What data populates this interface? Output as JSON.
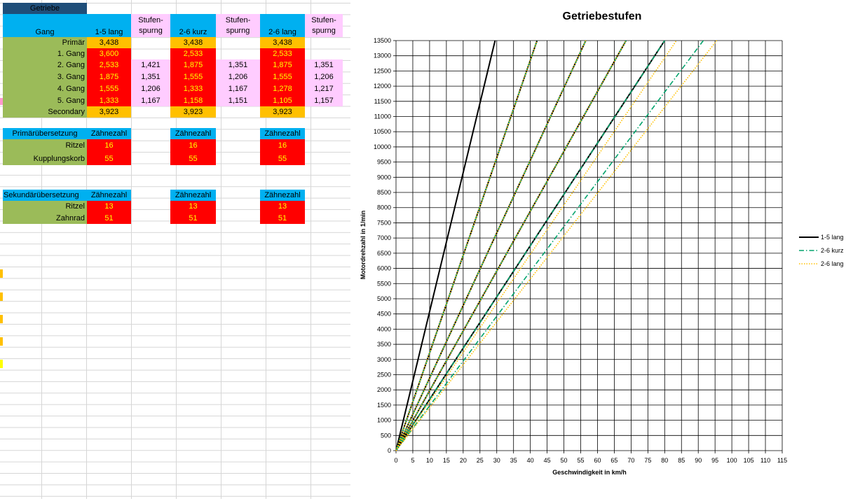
{
  "sheet": {
    "header_label": "Getriebe",
    "gear_table": {
      "col_gang": "Gang",
      "col_1": "1-5 lang",
      "col_2": "2-6 kurz",
      "col_3": "2-6 lang",
      "stufen_line1": "Stufen-",
      "stufen_line2": "spurng",
      "rows": [
        {
          "label": "Primär",
          "v1": "3,438",
          "s1": "",
          "v2": "3,438",
          "s2": "",
          "v3": "3,438",
          "s3": ""
        },
        {
          "label": "1. Gang",
          "v1": "3,600",
          "s1": "",
          "v2": "2,533",
          "s2": "",
          "v3": "2,533",
          "s3": ""
        },
        {
          "label": "2. Gang",
          "v1": "2,533",
          "s1": "1,421",
          "v2": "1,875",
          "s2": "1,351",
          "v3": "1,875",
          "s3": "1,351"
        },
        {
          "label": "3. Gang",
          "v1": "1,875",
          "s1": "1,351",
          "v2": "1,555",
          "s2": "1,206",
          "v3": "1,555",
          "s3": "1,206"
        },
        {
          "label": "4. Gang",
          "v1": "1,555",
          "s1": "1,206",
          "v2": "1,333",
          "s2": "1,167",
          "v3": "1,278",
          "s3": "1,217"
        },
        {
          "label": "5. Gang",
          "v1": "1,333",
          "s1": "1,167",
          "v2": "1,158",
          "s2": "1,151",
          "v3": "1,105",
          "s3": "1,157"
        },
        {
          "label": "Secondary",
          "v1": "3,923",
          "s1": "",
          "v2": "3,923",
          "s2": "",
          "v3": "3,923",
          "s3": ""
        }
      ]
    },
    "primary_table": {
      "title": "Primärübersetzung",
      "col": "Zähnezahl",
      "rows": [
        {
          "label": "Ritzel",
          "v1": "16",
          "v2": "16",
          "v3": "16"
        },
        {
          "label": "Kupplungskorb",
          "v1": "55",
          "v2": "55",
          "v3": "55"
        }
      ]
    },
    "secondary_table": {
      "title": "Sekundärübersetzung",
      "col": "Zähnezahl",
      "rows": [
        {
          "label": "Ritzel",
          "v1": "13",
          "v2": "13",
          "v3": "13"
        },
        {
          "label": "Zahnrad",
          "v1": "51",
          "v2": "51",
          "v3": "51"
        }
      ]
    }
  },
  "chart_data": {
    "type": "line",
    "title": "Getriebestufen",
    "xlabel": "Geschwindigkeit in km/h",
    "ylabel": "Motordrehzahl in 1/min",
    "xlim": [
      0,
      115
    ],
    "ylim": [
      0,
      13500
    ],
    "x_ticks": [
      "0",
      "5",
      "10",
      "15",
      "20",
      "25",
      "30",
      "35",
      "40",
      "45",
      "50",
      "55",
      "60",
      "65",
      "70",
      "75",
      "80",
      "85",
      "90",
      "95",
      "100",
      "105",
      "110",
      "115"
    ],
    "y_ticks": [
      "0",
      "500",
      "1000",
      "1500",
      "2000",
      "2500",
      "3000",
      "3500",
      "4000",
      "4500",
      "5000",
      "5500",
      "6000",
      "6500",
      "7000",
      "7500",
      "8000",
      "8500",
      "9000",
      "9500",
      "10000",
      "10500",
      "11000",
      "11500",
      "12000",
      "12500",
      "13000",
      "13500"
    ],
    "grid": true,
    "legend_position": "right",
    "series": [
      {
        "name": "1-5 lang",
        "color": "#000000",
        "dash": "solid",
        "lines": [
          {
            "x": [
              0,
              29.5
            ],
            "y": [
              0,
              13500
            ]
          },
          {
            "x": [
              0,
              42
            ],
            "y": [
              0,
              13500
            ]
          },
          {
            "x": [
              0,
              56.5
            ],
            "y": [
              0,
              13500
            ]
          },
          {
            "x": [
              0,
              68.5
            ],
            "y": [
              0,
              13500
            ]
          },
          {
            "x": [
              0,
              80
            ],
            "y": [
              0,
              13500
            ]
          }
        ]
      },
      {
        "name": "2-6 kurz",
        "color": "#00a36c",
        "dash": "dashdot",
        "lines": [
          {
            "x": [
              0,
              42
            ],
            "y": [
              0,
              13500
            ]
          },
          {
            "x": [
              0,
              56.5
            ],
            "y": [
              0,
              13500
            ]
          },
          {
            "x": [
              0,
              68.5
            ],
            "y": [
              0,
              13500
            ]
          },
          {
            "x": [
              0,
              80
            ],
            "y": [
              0,
              13500
            ]
          },
          {
            "x": [
              0,
              91.5
            ],
            "y": [
              0,
              13500
            ]
          }
        ]
      },
      {
        "name": "2-6 lang",
        "color": "#ffc000",
        "dash": "dotted",
        "lines": [
          {
            "x": [
              0,
              42
            ],
            "y": [
              0,
              13500
            ]
          },
          {
            "x": [
              0,
              56.5
            ],
            "y": [
              0,
              13500
            ]
          },
          {
            "x": [
              0,
              68.5
            ],
            "y": [
              0,
              13500
            ]
          },
          {
            "x": [
              0,
              83.5
            ],
            "y": [
              0,
              13500
            ]
          },
          {
            "x": [
              0,
              95.5
            ],
            "y": [
              0,
              13500
            ]
          }
        ]
      }
    ]
  }
}
